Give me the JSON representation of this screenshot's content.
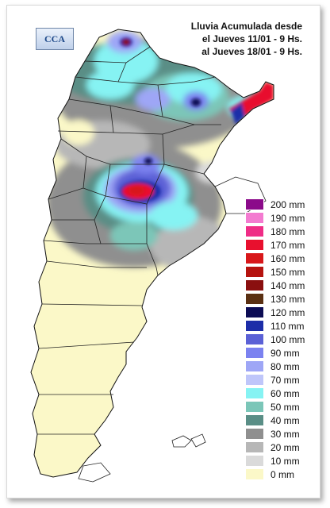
{
  "title": {
    "line1": "Lluvia Acumulada desde",
    "line2": "el Jueves 11/01 - 9 Hs.",
    "line3": "al Jueves 18/01 - 9 Hs."
  },
  "logo": "CCA",
  "legend": [
    {
      "label": "200 mm",
      "color": "#8b0a8a"
    },
    {
      "label": "190 mm",
      "color": "#f37bd0"
    },
    {
      "label": "180 mm",
      "color": "#ef2c86"
    },
    {
      "label": "170 mm",
      "color": "#e8102e"
    },
    {
      "label": "160 mm",
      "color": "#d8171a"
    },
    {
      "label": "150 mm",
      "color": "#b5130f"
    },
    {
      "label": "140 mm",
      "color": "#8a0f0f"
    },
    {
      "label": "130 mm",
      "color": "#5a3012"
    },
    {
      "label": "120 mm",
      "color": "#0c0c54"
    },
    {
      "label": "110 mm",
      "color": "#1d2da8"
    },
    {
      "label": "100 mm",
      "color": "#5b61d6"
    },
    {
      "label": "90 mm",
      "color": "#7b82f0"
    },
    {
      "label": "80 mm",
      "color": "#9ea6f6"
    },
    {
      "label": "70 mm",
      "color": "#bfc6fa"
    },
    {
      "label": "60 mm",
      "color": "#86f3f3"
    },
    {
      "label": "50 mm",
      "color": "#7bc6b8"
    },
    {
      "label": "40 mm",
      "color": "#5a8e86"
    },
    {
      "label": "30 mm",
      "color": "#8f8f8f"
    },
    {
      "label": "20 mm",
      "color": "#b7b7b7"
    },
    {
      "label": "10 mm",
      "color": "#dadada"
    },
    {
      "label": "0 mm",
      "color": "#fbf8c8"
    }
  ]
}
